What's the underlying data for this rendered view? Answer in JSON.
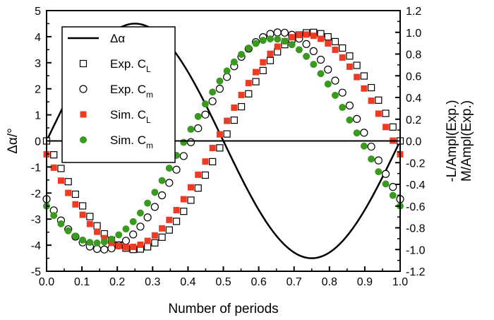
{
  "chart_data": {
    "type": "scatter",
    "xlabel": "Number of periods",
    "ylabel_left": "Δα/°",
    "ylabel_right": "-L/Ampl(Exp.)\nM/Ampl(Exp.)",
    "xlim": [
      0.0,
      1.0
    ],
    "ylim_left": [
      -5,
      5
    ],
    "ylim_right": [
      -1.2,
      1.2
    ],
    "x_ticks": [
      "0.0",
      "0.1",
      "0.2",
      "0.3",
      "0.4",
      "0.5",
      "0.6",
      "0.7",
      "0.8",
      "0.9",
      "1.0"
    ],
    "y_left_ticks": [
      "-5",
      "-4",
      "-3",
      "-2",
      "-1",
      "0",
      "1",
      "2",
      "3",
      "4",
      "5"
    ],
    "y_right_ticks": [
      "-1.2",
      "-1.0",
      "-0.8",
      "-0.6",
      "-0.4",
      "-0.2",
      "0.0",
      "0.2",
      "0.4",
      "0.6",
      "0.8",
      "1.0",
      "1.2"
    ],
    "zero_line": true,
    "legend_position": "top-left",
    "series": [
      {
        "name": "Δα",
        "sub": "",
        "kind": "line",
        "axis": "left",
        "color": "#000000",
        "amplitude": 4.5,
        "phase_shift": 0.0,
        "points": 201
      },
      {
        "name": "Exp. C",
        "sub": "L",
        "kind": "hollow-square",
        "axis": "right",
        "color": "#000000",
        "amplitude": 1.0,
        "phase_shift": 0.5,
        "points": 50
      },
      {
        "name": "Exp. C",
        "sub": "m",
        "kind": "hollow-circle",
        "axis": "right",
        "color": "#000000",
        "amplitude": 1.0,
        "phase_shift": 0.41,
        "points": 50
      },
      {
        "name": "Sim. C",
        "sub": "L",
        "kind": "filled-square",
        "axis": "right",
        "color": "#f03a22",
        "amplitude": 0.98,
        "phase_shift": 0.48,
        "points": 50
      },
      {
        "name": "Sim. C",
        "sub": "m",
        "kind": "filled-circle",
        "axis": "right",
        "color": "#3a9a1f",
        "amplitude": 0.94,
        "phase_shift": 0.39,
        "points": 50
      }
    ]
  }
}
